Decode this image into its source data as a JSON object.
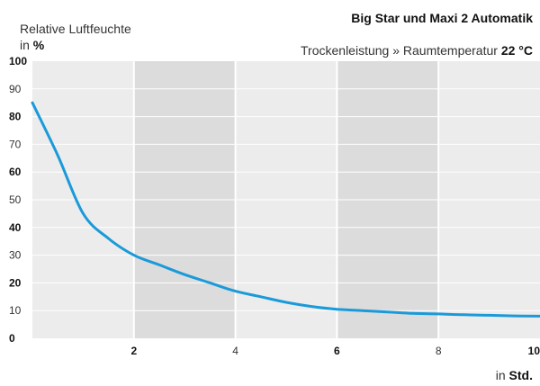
{
  "chart_data": {
    "type": "line",
    "title": "Big Star und Maxi 2 Automatik",
    "subtitle": {
      "prefix": "Trockenleistung » Raumtemperatur",
      "value": "22 °C"
    },
    "ylabel": {
      "line1": "Relative Luftfeuchte",
      "unit_prefix": "in",
      "unit": "%"
    },
    "xlabel": {
      "unit_prefix": "in",
      "unit": "Std."
    },
    "xlim": [
      0,
      10
    ],
    "ylim": [
      0,
      100
    ],
    "x_ticks": [
      {
        "label": "2",
        "value": 2,
        "bold": true
      },
      {
        "label": "4",
        "value": 4,
        "bold": false
      },
      {
        "label": "6",
        "value": 6,
        "bold": true
      },
      {
        "label": "8",
        "value": 8,
        "bold": false
      },
      {
        "label": "10",
        "value": 10,
        "bold": true
      }
    ],
    "y_ticks": [
      {
        "label": "100",
        "value": 100,
        "bold": true
      },
      {
        "label": "90",
        "value": 90,
        "bold": false
      },
      {
        "label": "80",
        "value": 80,
        "bold": true
      },
      {
        "label": "70",
        "value": 70,
        "bold": false
      },
      {
        "label": "60",
        "value": 60,
        "bold": true
      },
      {
        "label": "50",
        "value": 50,
        "bold": false
      },
      {
        "label": "40",
        "value": 40,
        "bold": true
      },
      {
        "label": "30",
        "value": 30,
        "bold": false
      },
      {
        "label": "20",
        "value": 20,
        "bold": true
      },
      {
        "label": "10",
        "value": 10,
        "bold": false
      },
      {
        "label": "0",
        "value": 0,
        "bold": true
      }
    ],
    "shaded_bands": [
      [
        2,
        4
      ],
      [
        6,
        8
      ]
    ],
    "grid": true,
    "series": [
      {
        "color": "#1a9ad9",
        "x": [
          0,
          0.5,
          1,
          1.5,
          2,
          2.5,
          3,
          3.5,
          4,
          4.5,
          5,
          5.5,
          6,
          6.5,
          7,
          7.5,
          8,
          8.5,
          9,
          9.5,
          10
        ],
        "y": [
          85,
          66,
          45,
          36,
          30,
          26.5,
          23,
          20,
          17,
          15,
          13,
          11.5,
          10.5,
          10,
          9.5,
          9,
          8.8,
          8.5,
          8.3,
          8.1,
          8
        ]
      }
    ],
    "colors": {
      "plot_bg": "#ececec",
      "band_bg": "#dcdcdc",
      "line": "#1a9ad9"
    }
  }
}
